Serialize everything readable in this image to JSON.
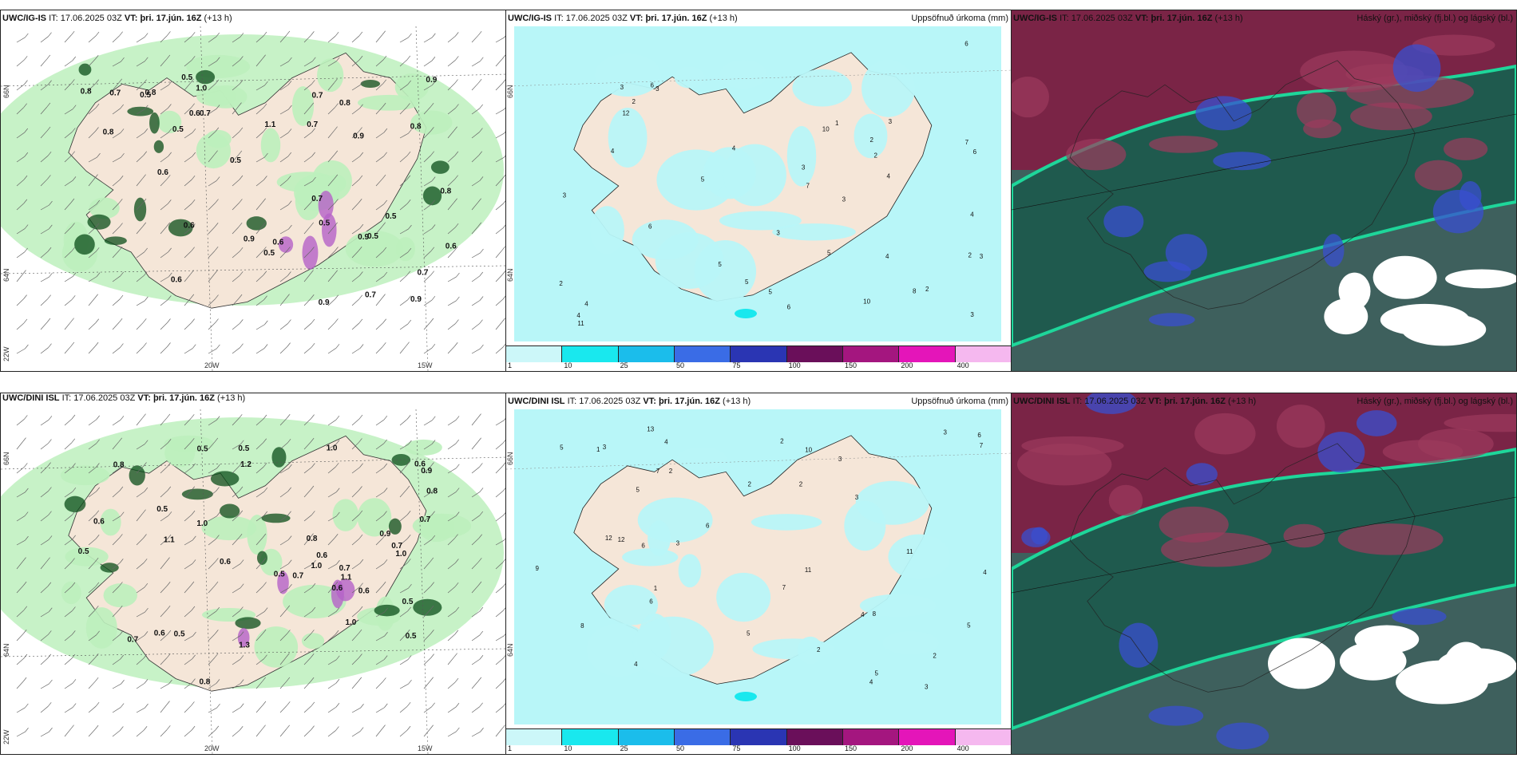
{
  "panels": [
    {
      "id": "p1",
      "model": "UWC/IG-IS",
      "it_label": "IT:",
      "it_value": "17.06.2025 03Z",
      "vt_label": "VT:",
      "vt_value": "þri. 17.jún. 16Z",
      "lead": "(+13 h)",
      "right_title": "",
      "lat_labels": [
        "66N",
        "64N",
        "22W"
      ],
      "lon_labels": [
        "20W",
        "15W"
      ],
      "values": [
        "0.8",
        "0.5",
        "0.8",
        "0.5",
        "0.9",
        "0.8",
        "0.9",
        "0.6",
        "0.7",
        "0.5",
        "0.7",
        "0.9",
        "0.7",
        "0.6",
        "0.9",
        "0.5",
        "0.7",
        "0.8",
        "0.6",
        "0.5",
        "1.1",
        "0.9",
        "0.5",
        "0.7",
        "0.6",
        "0.9",
        "0.5",
        "1.0",
        "0.6",
        "0.8",
        "0.7",
        "0.6",
        "0.5",
        "0.7",
        "0.8"
      ]
    },
    {
      "id": "p2",
      "model": "UWC/IG-IS",
      "it_label": "IT:",
      "it_value": "17.06.2025 03Z",
      "vt_label": "VT:",
      "vt_value": "þri. 17.jún. 16Z",
      "lead": "(+13 h)",
      "right_title": "Uppsöfnuð úrkoma (mm)",
      "lat_labels": [
        "66N",
        "64N"
      ],
      "lon_labels": [],
      "values": [
        "2",
        "2",
        "1",
        "2",
        "3",
        "2",
        "3",
        "4",
        "3",
        "5",
        "4",
        "6",
        "3",
        "5",
        "6",
        "7",
        "3",
        "4",
        "6",
        "3",
        "5",
        "4",
        "6",
        "3",
        "8",
        "10",
        "12",
        "4",
        "5",
        "4",
        "7",
        "6",
        "11",
        "10",
        "5",
        "3",
        "2",
        "4",
        "2",
        "3"
      ]
    },
    {
      "id": "p3",
      "model": "UWC/IG-IS",
      "it_label": "IT:",
      "it_value": "17.06.2025 03Z",
      "vt_label": "VT:",
      "vt_value": "þri. 17.jún. 16Z",
      "lead": "(+13 h)",
      "right_title": "Háský (gr.), miðský (fj.bl.) og lágský (bl.)",
      "lat_labels": [],
      "lon_labels": [],
      "values": []
    },
    {
      "id": "p4",
      "model": "UWC/DINI ISL",
      "it_label": "IT:",
      "it_value": "17.06.2025 03Z",
      "vt_label": "VT:",
      "vt_value": "þri. 17.jún. 16Z",
      "lead": "(+13 h)",
      "right_title": "",
      "lat_labels": [
        "66N",
        "64N",
        "22W"
      ],
      "lon_labels": [
        "20W",
        "15W"
      ],
      "values": [
        "0.5",
        "0.5",
        "0.6",
        "1.0",
        "0.7",
        "0.8",
        "1.1",
        "1.0",
        "0.5",
        "0.6",
        "0.8",
        "1.0",
        "0.5",
        "0.7",
        "0.6",
        "0.5",
        "1.1",
        "0.7",
        "1.0",
        "0.6",
        "0.9",
        "0.5",
        "0.8",
        "0.5",
        "1.2",
        "0.7",
        "0.6",
        "1.0",
        "0.6",
        "1.3",
        "0.5",
        "0.6",
        "0.9",
        "0.7",
        "0.8"
      ]
    },
    {
      "id": "p5",
      "model": "UWC/DINI ISL",
      "it_label": "IT:",
      "it_value": "17.06.2025 03Z",
      "vt_label": "VT:",
      "vt_value": "þri. 17.jún. 16Z",
      "lead": "(+13 h)",
      "right_title": "Uppsöfnuð úrkoma (mm)",
      "lat_labels": [
        "66N",
        "64N"
      ],
      "lon_labels": [],
      "values": [
        "2",
        "1",
        "2",
        "3",
        "2",
        "4",
        "3",
        "5",
        "4",
        "3",
        "6",
        "5",
        "2",
        "4",
        "8",
        "11",
        "5",
        "3",
        "6",
        "4",
        "7",
        "3",
        "5",
        "12",
        "13",
        "10",
        "7",
        "9",
        "6",
        "4",
        "5",
        "3",
        "2",
        "11",
        "12",
        "6",
        "7",
        "8",
        "2",
        "1"
      ]
    },
    {
      "id": "p6",
      "model": "UWC/DINI ISL",
      "it_label": "IT:",
      "it_value": "17.06.2025 03Z",
      "vt_label": "VT:",
      "vt_value": "þri. 17.jún. 16Z",
      "lead": "(+13 h)",
      "right_title": "Háský (gr.), miðský (fj.bl.) og lágský (bl.)",
      "lat_labels": [],
      "lon_labels": [],
      "values": []
    }
  ],
  "colorbar": {
    "colors": [
      "#ccf7f9",
      "#19e8ee",
      "#1bbdeb",
      "#3a6ce6",
      "#2a35b3",
      "#6a0f5a",
      "#a4167f",
      "#e415b9",
      "#f5b8ef"
    ],
    "ticks": [
      "1",
      "10",
      "25",
      "50",
      "75",
      "100",
      "150",
      "200",
      "400"
    ]
  },
  "palette": {
    "land": "#f5e6d8",
    "precip_light": "#bdf0bd",
    "precip_dark": "#0b4e1a",
    "accum": "#b8f6f8",
    "cloud_high": "#8a1d4e",
    "cloud_mid": "#1f5a4e",
    "cloud_low": "#3a4fd0",
    "cloud_edge": "#1ed69a"
  }
}
